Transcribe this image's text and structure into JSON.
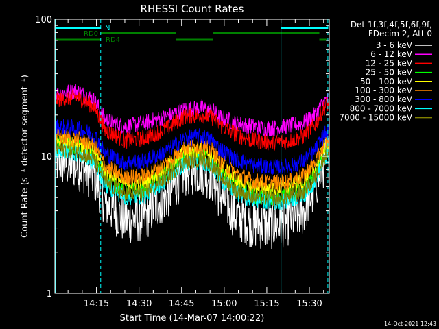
{
  "chart_data": {
    "type": "line",
    "title": "RHESSI Count Rates",
    "xlabel": "Start Time (14-Mar-07 14:00:22)",
    "ylabel": "Count Rate (s⁻¹ detector segment⁻¹)",
    "y_scale": "log",
    "ylim": [
      1,
      100
    ],
    "y_ticks": [
      {
        "value": 1,
        "label": "1"
      },
      {
        "value": 10,
        "label": "10"
      },
      {
        "value": 100,
        "label": "100"
      }
    ],
    "x_unit": "minutes after 14:00",
    "xlim": [
      0.37,
      97
    ],
    "x_ticks": [
      {
        "value": 15,
        "label": "14:15"
      },
      {
        "value": 30,
        "label": "14:30"
      },
      {
        "value": 45,
        "label": "14:45"
      },
      {
        "value": 60,
        "label": "15:00"
      },
      {
        "value": 75,
        "label": "15:15"
      },
      {
        "value": 90,
        "label": "15:30"
      }
    ],
    "grid": false,
    "legend": {
      "position": "right",
      "header": [
        "Det 1f,3f,4f,5f,6f,9f,",
        "FDecim 2, Att 0"
      ]
    },
    "x": [
      0.37,
      8,
      14,
      18,
      25,
      32,
      40,
      46,
      52,
      56,
      58,
      64,
      70,
      76,
      82,
      88,
      92,
      96
    ],
    "series": [
      {
        "name": "3 - 6 keV",
        "color": "#ffffff",
        "values": [
          9.2,
          8.6,
          7.2,
          4.6,
          3.4,
          3.6,
          5.2,
          7.6,
          8.0,
          6.8,
          5.4,
          3.7,
          3.2,
          3.1,
          3.3,
          4.0,
          5.8,
          9.8
        ]
      },
      {
        "name": "6 - 12 keV",
        "color": "#ff00ff",
        "values": [
          28.5,
          30,
          26,
          18.5,
          16.5,
          17.5,
          19.5,
          22,
          22.5,
          21.5,
          19.5,
          17.5,
          16.5,
          16,
          16.5,
          17.5,
          20,
          26
        ]
      },
      {
        "name": "12 - 25 keV",
        "color": "#ff0000",
        "values": [
          26,
          27,
          23,
          15.5,
          13,
          13.5,
          16,
          19.5,
          20,
          19,
          17,
          14.5,
          13,
          12.6,
          12.8,
          14,
          17,
          24
        ]
      },
      {
        "name": "25 - 50 keV",
        "color": "#00ff00",
        "values": [
          12.5,
          12,
          10.5,
          7,
          5.5,
          5.7,
          7.5,
          9.8,
          10.3,
          9.3,
          7.8,
          6,
          5.2,
          5,
          5.1,
          5.7,
          7.3,
          11
        ]
      },
      {
        "name": "50 - 100 keV",
        "color": "#ffff00",
        "values": [
          13,
          12.5,
          11,
          7.8,
          6.3,
          6.5,
          8.3,
          10.6,
          11,
          10,
          8.6,
          6.8,
          6,
          5.8,
          5.9,
          6.5,
          8.2,
          12
        ]
      },
      {
        "name": "100 - 300 keV",
        "color": "#ff8800",
        "values": [
          14,
          13.5,
          12,
          8.5,
          7,
          7.2,
          9,
          11.5,
          12,
          11,
          9.4,
          7.5,
          6.6,
          6.4,
          6.5,
          7.2,
          9,
          13
        ]
      },
      {
        "name": "300 - 800 keV",
        "color": "#0000ff",
        "values": [
          16.5,
          16,
          14.5,
          10.5,
          9,
          9.2,
          11,
          13.5,
          14,
          13,
          11.5,
          9.5,
          8.6,
          8.3,
          8.4,
          9.2,
          11,
          15
        ]
      },
      {
        "name": "800 - 7000 keV",
        "color": "#00ffff",
        "values": [
          11,
          10.5,
          9,
          6.2,
          5,
          5.1,
          6.8,
          8.8,
          9.2,
          8.3,
          7,
          5.4,
          4.8,
          4.6,
          4.7,
          5.2,
          6.6,
          10
        ]
      },
      {
        "name": "7000 - 15000 keV",
        "color": "#808000",
        "values": [
          11.5,
          11,
          9.5,
          6.5,
          5.3,
          5.4,
          7.1,
          9.1,
          9.6,
          8.6,
          7.3,
          5.7,
          5.1,
          4.9,
          5,
          5.5,
          6.9,
          10.5
        ]
      }
    ],
    "annotations": {
      "bars_top": [
        {
          "label": "N",
          "color": "#00ffff",
          "segments": [
            [
              0.37,
              16.5
            ],
            [
              80,
              96.5
            ]
          ]
        },
        {
          "label": "RD0",
          "color": "#008000",
          "segments": [
            [
              16.5,
              43
            ],
            [
              56,
              93.5
            ]
          ]
        },
        {
          "label": "RD4",
          "color": "#008000",
          "segments": [
            [
              0.37,
              16.5
            ],
            [
              43,
              56
            ],
            [
              93.5,
              96
            ]
          ]
        }
      ],
      "vlines_solid": [
        {
          "x": 80,
          "color": "#00ffff"
        }
      ],
      "vlines_dashed": [
        {
          "x": 16.5,
          "color": "#00ffff"
        },
        {
          "x": 96.5,
          "color": "#00ffff"
        }
      ]
    }
  },
  "footer": {
    "timestamp": "14-Oct-2021 12:43"
  }
}
